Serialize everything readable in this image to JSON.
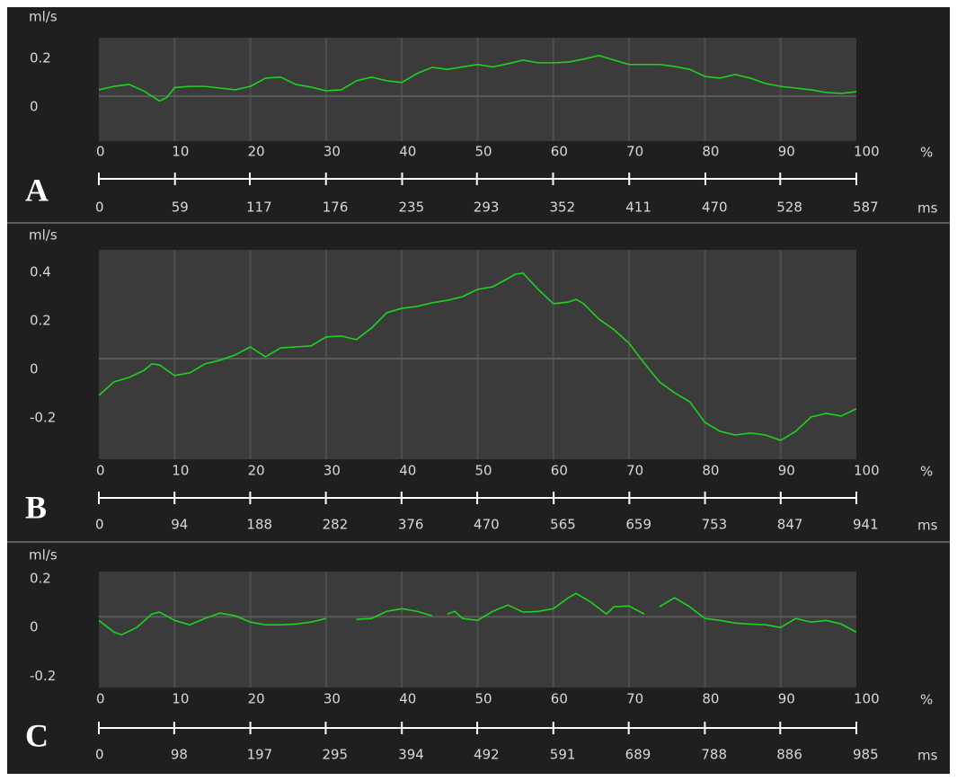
{
  "chart_data": [
    {
      "type": "line",
      "panel_label": "A",
      "ylabel": "ml/s",
      "xunit": "%",
      "x2unit": "ms",
      "color": "#1fd21f",
      "xlim": [
        0,
        100
      ],
      "xticks": [
        0,
        10,
        20,
        30,
        40,
        50,
        60,
        70,
        80,
        90,
        100
      ],
      "x2lim": [
        0,
        587
      ],
      "x2ticks": [
        0,
        59,
        117,
        176,
        235,
        293,
        352,
        411,
        470,
        528,
        587
      ],
      "ylim": [
        -0.185,
        0.24
      ],
      "yticks": [
        0,
        0.2
      ],
      "x": [
        0,
        2,
        4,
        6,
        8,
        9,
        10,
        12,
        14,
        16,
        18,
        20,
        22,
        24,
        26,
        28,
        30,
        32,
        34,
        36,
        38,
        40,
        42,
        44,
        46,
        48,
        50,
        52,
        54,
        56,
        58,
        60,
        62,
        64,
        66,
        68,
        70,
        72,
        74,
        76,
        78,
        80,
        82,
        84,
        86,
        88,
        90,
        92,
        94,
        96,
        98,
        100
      ],
      "values": [
        0.026,
        0.04,
        0.048,
        0.02,
        -0.02,
        -0.005,
        0.035,
        0.04,
        0.04,
        0.033,
        0.026,
        0.04,
        0.074,
        0.078,
        0.048,
        0.037,
        0.022,
        0.026,
        0.063,
        0.078,
        0.063,
        0.056,
        0.093,
        0.118,
        0.11,
        0.12,
        0.13,
        0.12,
        0.133,
        0.148,
        0.137,
        0.137,
        0.14,
        0.152,
        0.167,
        0.148,
        0.13,
        0.13,
        0.13,
        0.122,
        0.11,
        0.081,
        0.074,
        0.089,
        0.074,
        0.052,
        0.04,
        0.033,
        0.026,
        0.015,
        0.011,
        0.018
      ]
    },
    {
      "type": "line",
      "panel_label": "B",
      "ylabel": "ml/s",
      "xunit": "%",
      "x2unit": "ms",
      "color": "#1fd21f",
      "xlim": [
        0,
        100
      ],
      "xticks": [
        0,
        10,
        20,
        30,
        40,
        50,
        60,
        70,
        80,
        90,
        100
      ],
      "x2lim": [
        0,
        941
      ],
      "x2ticks": [
        0,
        94,
        188,
        282,
        376,
        470,
        565,
        659,
        753,
        847,
        941
      ],
      "ylim": [
        -0.415,
        0.448
      ],
      "yticks": [
        -0.2,
        0,
        0.2,
        0.4
      ],
      "x": [
        0,
        2,
        4,
        6,
        7,
        8,
        10,
        12,
        14,
        16,
        18,
        20,
        22,
        24,
        26,
        28,
        30,
        32,
        34,
        36,
        38,
        40,
        42,
        44,
        46,
        48,
        50,
        52,
        54,
        55,
        56,
        58,
        60,
        62,
        63,
        64,
        66,
        68,
        70,
        72,
        74,
        76,
        78,
        80,
        82,
        84,
        86,
        88,
        90,
        92,
        94,
        96,
        98,
        100
      ],
      "values": [
        -0.152,
        -0.096,
        -0.078,
        -0.048,
        -0.022,
        -0.026,
        -0.07,
        -0.059,
        -0.022,
        -0.007,
        0.015,
        0.048,
        0.007,
        0.044,
        0.048,
        0.052,
        0.089,
        0.093,
        0.078,
        0.126,
        0.189,
        0.207,
        0.215,
        0.23,
        0.24,
        0.255,
        0.285,
        0.296,
        0.33,
        0.348,
        0.352,
        0.285,
        0.226,
        0.233,
        0.244,
        0.226,
        0.163,
        0.119,
        0.063,
        -0.019,
        -0.096,
        -0.141,
        -0.178,
        -0.263,
        -0.3,
        -0.315,
        -0.307,
        -0.315,
        -0.337,
        -0.3,
        -0.241,
        -0.226,
        -0.237,
        -0.207
      ]
    },
    {
      "type": "line",
      "panel_label": "C",
      "ylabel": "ml/s",
      "xunit": "%",
      "x2unit": "ms",
      "color": "#1fd21f",
      "xlim": [
        0,
        100
      ],
      "xticks": [
        0,
        10,
        20,
        30,
        40,
        50,
        60,
        70,
        80,
        90,
        100
      ],
      "x2lim": [
        0,
        985
      ],
      "x2ticks": [
        0,
        98,
        197,
        295,
        394,
        492,
        591,
        689,
        788,
        886,
        985
      ],
      "ylim": [
        -0.29,
        0.185
      ],
      "yticks": [
        -0.2,
        0,
        0.2
      ],
      "x": [
        0,
        2,
        3,
        5,
        7,
        8,
        10,
        12,
        14,
        16,
        18,
        20,
        22,
        24,
        26,
        28,
        30,
        32,
        34,
        36,
        38,
        40,
        42,
        44,
        45,
        46,
        47,
        48,
        50,
        52,
        54,
        56,
        58,
        60,
        62,
        63,
        65,
        67,
        68,
        70,
        72,
        73,
        74,
        76,
        78,
        80,
        82,
        84,
        86,
        88,
        90,
        92,
        94,
        96,
        98,
        100
      ],
      "values": [
        -0.015,
        -0.063,
        -0.074,
        -0.044,
        0.011,
        0.019,
        -0.015,
        -0.033,
        -0.007,
        0.015,
        0.004,
        -0.022,
        -0.033,
        -0.033,
        -0.03,
        -0.022,
        -0.007,
        null,
        -0.011,
        -0.007,
        0.022,
        0.033,
        0.022,
        0.004,
        null,
        0.011,
        0.022,
        -0.007,
        -0.015,
        0.022,
        0.048,
        0.019,
        0.022,
        0.033,
        0.078,
        0.096,
        0.059,
        0.011,
        0.041,
        0.044,
        0.011,
        null,
        0.041,
        0.078,
        0.041,
        -0.007,
        -0.015,
        -0.026,
        -0.03,
        -0.033,
        -0.044,
        -0.007,
        -0.022,
        -0.015,
        -0.03,
        -0.063
      ]
    }
  ]
}
